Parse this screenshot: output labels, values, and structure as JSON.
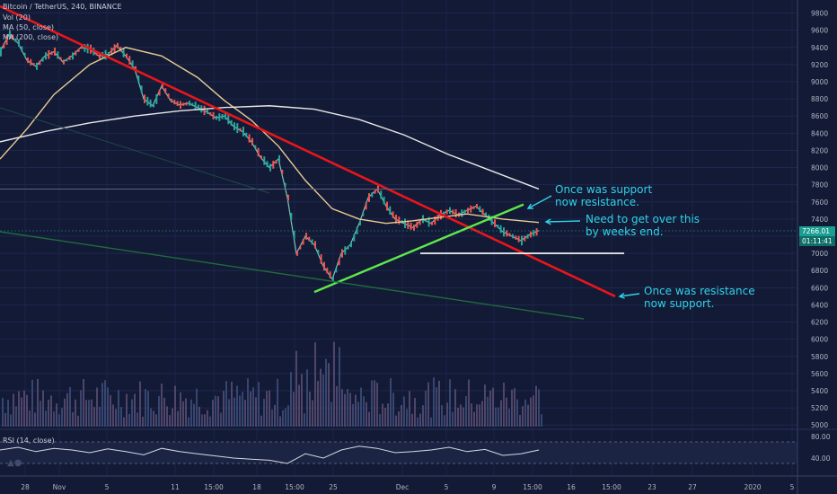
{
  "legend": {
    "title": "Bitcoin / TetherUS, 240, BINANCE",
    "vol": "Vol (20)",
    "ma50": "MA (50, close)",
    "ma200": "MA (200, close)",
    "rsi": "RSI (14, close)"
  },
  "annotations": {
    "support_resistance": [
      "Once was support",
      "now resistance."
    ],
    "need_over": [
      "Need to get over this",
      "by weeks end."
    ],
    "resistance_support": [
      "Once was resistance",
      "now support."
    ]
  },
  "price_tag": {
    "price": "7266.01",
    "timer": "01:11:41"
  },
  "colors": {
    "background": "#131a36",
    "downtrend": "#e8161b",
    "uptrend": "#5ee84a",
    "ma50": "#e8cc92",
    "ma200": "#e8e8e8",
    "annotation": "#2fd3e8",
    "bull": "#26a69a",
    "bear": "#ef5350"
  },
  "chart_data": [
    {
      "type": "line",
      "name": "price",
      "title": "Bitcoin / TetherUS, 240, BINANCE",
      "y_ticks": [
        5000,
        5200,
        5400,
        5600,
        5800,
        6000,
        6200,
        6400,
        6600,
        6800,
        7000,
        7200,
        7400,
        7600,
        7800,
        8000,
        8200,
        8400,
        8600,
        8800,
        9000,
        9200,
        9400,
        9600,
        9800
      ],
      "x_ticks": [
        "28",
        "Nov",
        "5",
        "11",
        "15:00",
        "18",
        "15:00",
        "25",
        "Dec",
        "5",
        "9",
        "15:00",
        "16",
        "15:00",
        "23",
        "27",
        "2020",
        "5"
      ],
      "ylim": [
        4950,
        9900
      ],
      "x": [
        0,
        10,
        20,
        30,
        40,
        50,
        60,
        70,
        80,
        90,
        100,
        110,
        120,
        130,
        140,
        150,
        160,
        170,
        180,
        190,
        200,
        210,
        220,
        230,
        240,
        250,
        260,
        270,
        280,
        290,
        300,
        310,
        320,
        330,
        340,
        350,
        360,
        370,
        380,
        390,
        400,
        410,
        420,
        430,
        440,
        450,
        460,
        470,
        480,
        490,
        500,
        510,
        520,
        530,
        540,
        550,
        560,
        570,
        580,
        590,
        600
      ],
      "y": [
        9350,
        9550,
        9450,
        9250,
        9180,
        9300,
        9350,
        9230,
        9300,
        9400,
        9380,
        9300,
        9320,
        9420,
        9300,
        9150,
        8800,
        8720,
        8950,
        8780,
        8730,
        8750,
        8700,
        8650,
        8580,
        8600,
        8480,
        8420,
        8300,
        8120,
        8000,
        8100,
        7650,
        7000,
        7200,
        7100,
        6850,
        6700,
        7000,
        7100,
        7350,
        7650,
        7750,
        7550,
        7400,
        7350,
        7300,
        7400,
        7350,
        7450,
        7500,
        7450,
        7500,
        7550,
        7450,
        7350,
        7250,
        7200,
        7150,
        7220,
        7266
      ],
      "series": [
        {
          "name": "MA (50, close)",
          "x": [
            0,
            30,
            60,
            100,
            140,
            180,
            220,
            250,
            280,
            310,
            340,
            370,
            400,
            430,
            460,
            490,
            520,
            560,
            600
          ],
          "y": [
            8100,
            8450,
            8850,
            9200,
            9400,
            9300,
            9050,
            8780,
            8550,
            8250,
            7850,
            7520,
            7400,
            7350,
            7380,
            7420,
            7460,
            7400,
            7360
          ]
        },
        {
          "name": "MA (200, close)",
          "x": [
            0,
            50,
            100,
            150,
            200,
            250,
            300,
            350,
            400,
            450,
            500,
            550,
            600
          ],
          "y": [
            8300,
            8420,
            8520,
            8600,
            8660,
            8700,
            8720,
            8680,
            8560,
            8380,
            8150,
            7950,
            7750
          ]
        }
      ],
      "trendlines": [
        {
          "name": "downtrend",
          "from": [
            0,
            9880
          ],
          "to": [
            685,
            6500
          ]
        },
        {
          "name": "uptrend",
          "from": [
            350,
            6550
          ],
          "to": [
            583,
            7570
          ]
        },
        {
          "name": "support",
          "from": [
            468,
            7000
          ],
          "to": [
            695,
            7000
          ]
        },
        {
          "name": "level",
          "from": [
            0,
            7750
          ],
          "to": [
            580,
            7750
          ]
        }
      ]
    },
    {
      "type": "line",
      "name": "RSI (14, close)",
      "y_ticks": [
        40,
        80
      ],
      "ylim": [
        10,
        85
      ],
      "x": [
        0,
        20,
        40,
        60,
        80,
        100,
        120,
        140,
        160,
        180,
        200,
        220,
        240,
        260,
        280,
        300,
        320,
        340,
        360,
        380,
        400,
        420,
        440,
        460,
        480,
        500,
        520,
        540,
        560,
        580,
        600
      ],
      "y": [
        55,
        60,
        52,
        58,
        55,
        50,
        57,
        52,
        46,
        58,
        52,
        48,
        44,
        40,
        38,
        36,
        30,
        48,
        40,
        55,
        62,
        58,
        50,
        52,
        55,
        60,
        52,
        56,
        45,
        48,
        55
      ]
    }
  ]
}
